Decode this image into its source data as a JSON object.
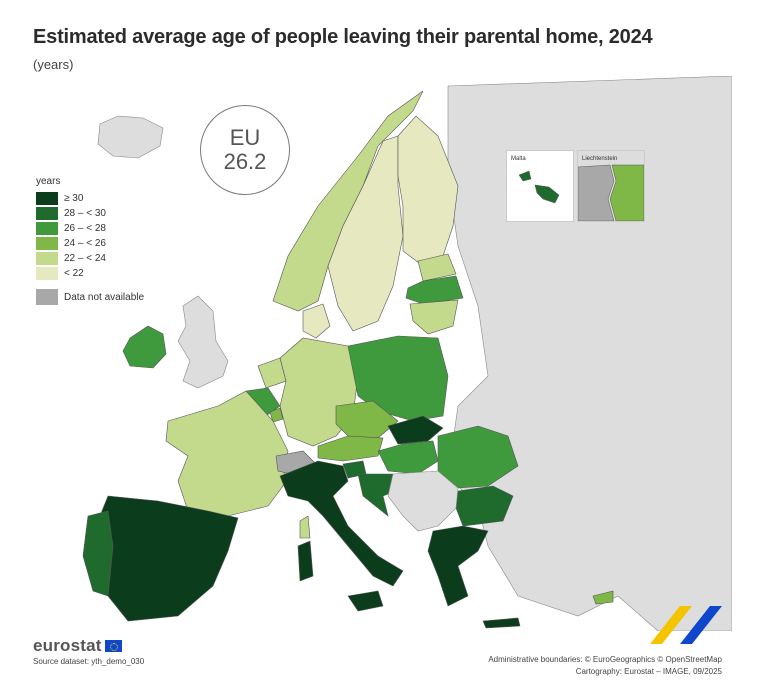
{
  "title": "Estimated average age of people leaving their parental home, 2024",
  "subtitle": "(years)",
  "eu_badge": {
    "label": "EU",
    "value": "26.2"
  },
  "legend": {
    "title": "years",
    "classes": [
      {
        "label": "≥ 30",
        "color": "#0b3d1c"
      },
      {
        "label": "28 – < 30",
        "color": "#1f6b2e"
      },
      {
        "label": "26 – < 28",
        "color": "#3f9a3e"
      },
      {
        "label": "24 – < 26",
        "color": "#7fb846"
      },
      {
        "label": "22 – < 24",
        "color": "#c3d98c"
      },
      {
        "label": "< 22",
        "color": "#e6e8c0"
      }
    ],
    "not_available": {
      "label": "Data not available",
      "color": "#a8a8a8"
    }
  },
  "colors": {
    "non_eu": "#dddddd",
    "sea": "#ffffff",
    "border": "#555555"
  },
  "insets": {
    "malta": "Malta",
    "liechtenstein": "Liechtenstein"
  },
  "footer": {
    "logo": "eurostat",
    "source": "Source dataset: yth_demo_030",
    "boundaries": "Administrative boundaries: © EuroGeographics © OpenStreetMap",
    "cartography": "Cartography: Eurostat – IMAGE, 09/2025"
  }
}
